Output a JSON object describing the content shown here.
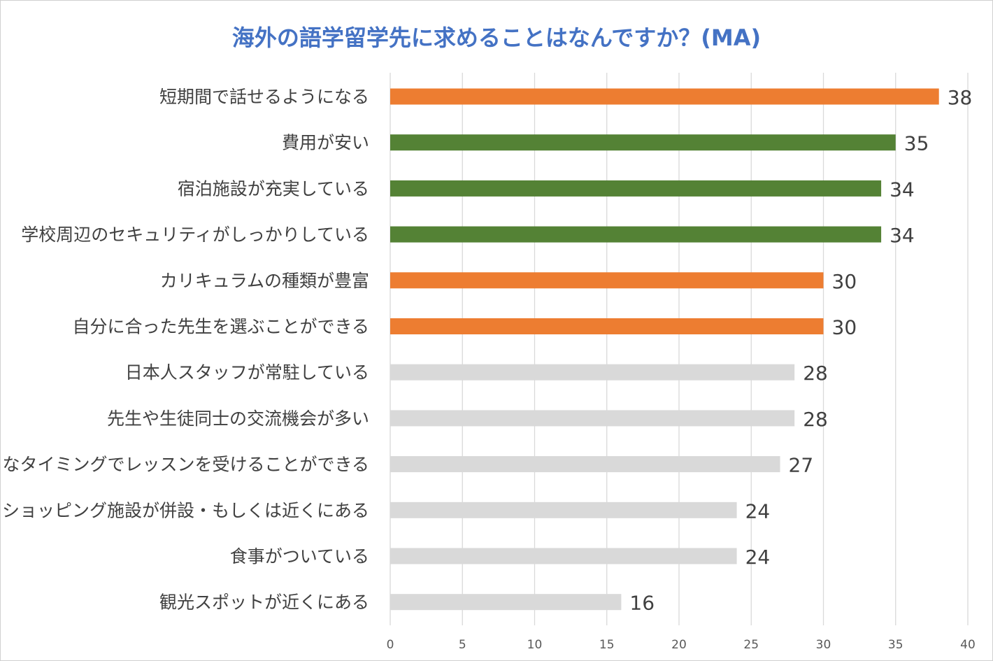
{
  "chart_data": {
    "type": "bar",
    "orientation": "horizontal",
    "title": "海外の語学留学先に求めることはなんですか？(MA)",
    "xlabel": "",
    "ylabel": "",
    "xlim": [
      0,
      40
    ],
    "xticks": [
      0,
      5,
      10,
      15,
      20,
      25,
      30,
      35,
      40
    ],
    "grid": true,
    "legend": "none",
    "categories": [
      "短期間で話せるようになる",
      "費用が安い",
      "宿泊施設が充実している",
      "学校周辺のセキュリティがしっかりしている",
      "カリキュラムの種類が豊富",
      "自分に合った先生を選ぶことができる",
      "日本人スタッフが常駐している",
      "先生や生徒同士の交流機会が多い",
      "好きなタイミングでレッスンを受けることができる",
      "ショッピング施設が併設・もしくは近くにある",
      "食事がついている",
      "観光スポットが近くにある"
    ],
    "values": [
      38,
      35,
      34,
      34,
      30,
      30,
      28,
      28,
      27,
      24,
      24,
      16
    ],
    "bar_colors": [
      "#ed7d31",
      "#548235",
      "#548235",
      "#548235",
      "#ed7d31",
      "#ed7d31",
      "#d9d9d9",
      "#d9d9d9",
      "#d9d9d9",
      "#d9d9d9",
      "#d9d9d9",
      "#d9d9d9"
    ]
  }
}
